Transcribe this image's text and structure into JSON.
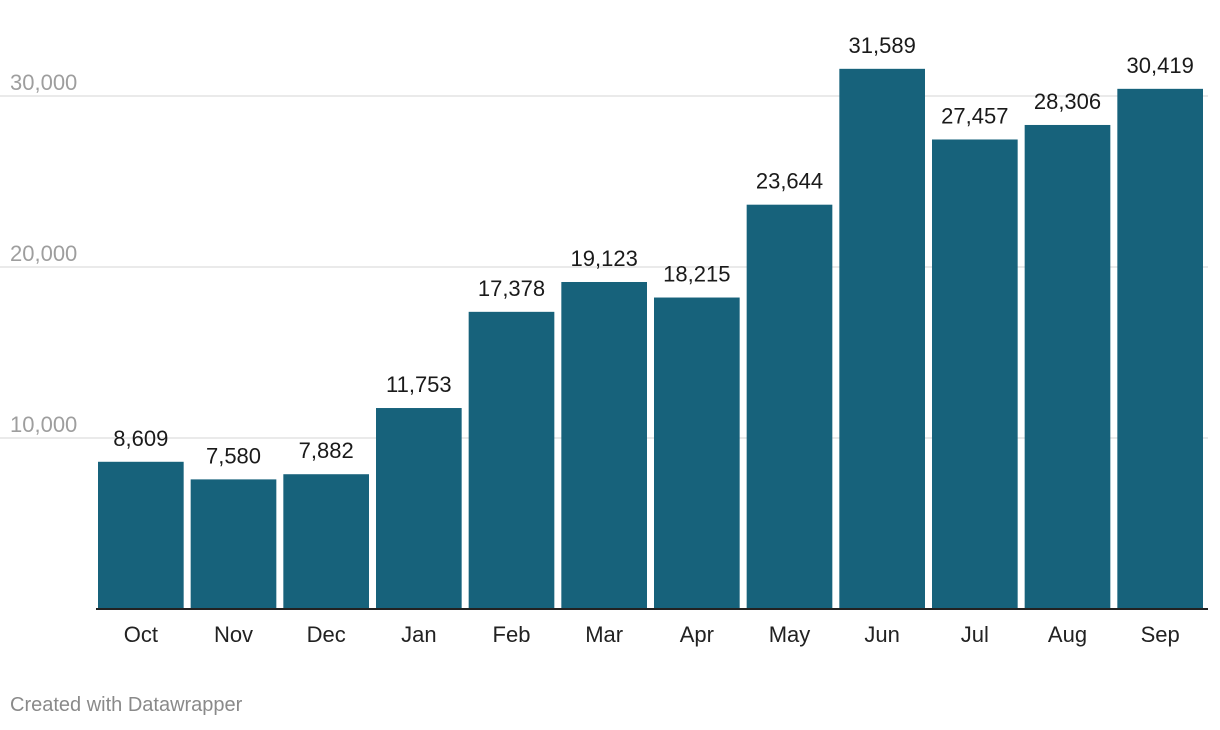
{
  "chart_data": {
    "type": "bar",
    "title": "",
    "xlabel": "",
    "ylabel": "",
    "categories": [
      "Oct",
      "Nov",
      "Dec",
      "Jan",
      "Feb",
      "Mar",
      "Apr",
      "May",
      "Jun",
      "Jul",
      "Aug",
      "Sep"
    ],
    "values": [
      8609,
      7580,
      7882,
      11753,
      17378,
      19123,
      18215,
      23644,
      31589,
      27457,
      28306,
      30419
    ],
    "data_labels": [
      "8,609",
      "7,580",
      "7,882",
      "11,753",
      "17,378",
      "19,123",
      "18,215",
      "23,644",
      "31,589",
      "27,457",
      "28,306",
      "30,419"
    ],
    "ylim": [
      0,
      30000
    ],
    "yticks": [
      10000,
      20000,
      30000
    ],
    "ytick_labels": [
      "10,000",
      "20,000",
      "30,000"
    ],
    "grid": true,
    "legend": "none",
    "bar_color": "#17627b",
    "grid_color": "#e3e3e3",
    "axis_color": "#222222"
  },
  "footer": {
    "credit": "Created with Datawrapper"
  }
}
